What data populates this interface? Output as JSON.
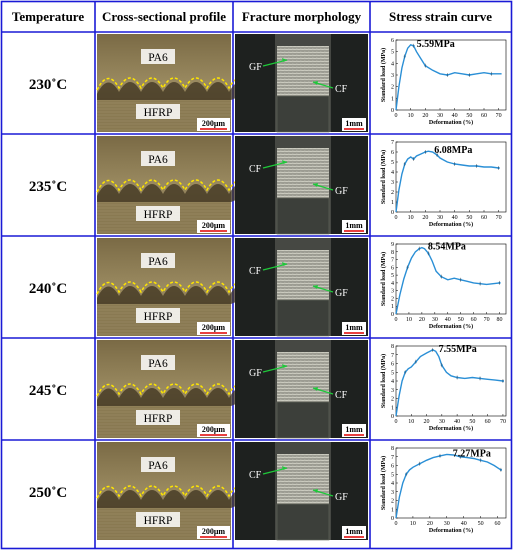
{
  "headers": [
    "Temperature",
    "Cross-sectional profile",
    "Fracture morphology",
    "Stress strain curve"
  ],
  "rows": [
    {
      "temperature": "230˚C",
      "top_label": "PA6",
      "bottom_label": "HFRP",
      "scale_bar": "200μm",
      "fracture_labels": [
        {
          "text": "GF",
          "side": "left"
        },
        {
          "text": "CF",
          "side": "right"
        }
      ],
      "fracture_scale": "1mm",
      "peak_label": "5.59MPa"
    },
    {
      "temperature": "235˚C",
      "top_label": "PA6",
      "bottom_label": "HFRP",
      "scale_bar": "200μm",
      "fracture_labels": [
        {
          "text": "CF",
          "side": "left"
        },
        {
          "text": "GF",
          "side": "right"
        }
      ],
      "fracture_scale": "1mm",
      "peak_label": "6.08MPa"
    },
    {
      "temperature": "240˚C",
      "top_label": "PA6",
      "bottom_label": "HFRP",
      "scale_bar": "200μm",
      "fracture_labels": [
        {
          "text": "CF",
          "side": "left"
        },
        {
          "text": "GF",
          "side": "right"
        }
      ],
      "fracture_scale": "1mm",
      "peak_label": "8.54MPa"
    },
    {
      "temperature": "245˚C",
      "top_label": "PA6",
      "bottom_label": "HFRP",
      "scale_bar": "200μm",
      "fracture_labels": [
        {
          "text": "GF",
          "side": "left"
        },
        {
          "text": "CF",
          "side": "right"
        }
      ],
      "fracture_scale": "1mm",
      "peak_label": "7.55MPa"
    },
    {
      "temperature": "250˚C",
      "top_label": "PA6",
      "bottom_label": "HFRP",
      "scale_bar": "200μm",
      "fracture_labels": [
        {
          "text": "CF",
          "side": "left"
        },
        {
          "text": "GF",
          "side": "right"
        }
      ],
      "fracture_scale": "1mm",
      "peak_label": "7.27MPa"
    }
  ],
  "chart_data": [
    {
      "type": "line",
      "xlabel": "Deformation (%)",
      "ylabel": "Standard load (MPa)",
      "xlim": [
        0,
        75
      ],
      "ylim": [
        0,
        6
      ],
      "xticks": [
        0,
        10,
        20,
        30,
        40,
        50,
        60,
        70
      ],
      "yticks": [
        0,
        1,
        2,
        3,
        4,
        5,
        6
      ],
      "x": [
        0,
        2,
        4,
        6,
        8,
        10,
        12,
        14,
        17,
        20,
        25,
        30,
        35,
        40,
        45,
        50,
        55,
        60,
        65,
        70,
        72
      ],
      "y": [
        0,
        2.0,
        3.6,
        4.6,
        5.3,
        5.59,
        5.5,
        5.0,
        4.4,
        3.8,
        3.4,
        3.1,
        3.0,
        3.2,
        3.1,
        3.0,
        3.1,
        3.2,
        3.1,
        3.1,
        3.1
      ],
      "peak": {
        "x": 10,
        "y": 5.59,
        "label": "5.59MPa"
      },
      "color": "#2a8fd6"
    },
    {
      "type": "line",
      "xlabel": "Deformation (%)",
      "ylabel": "Standard load (MPa)",
      "xlim": [
        0,
        75
      ],
      "ylim": [
        0,
        7
      ],
      "xticks": [
        0,
        10,
        20,
        30,
        40,
        50,
        60,
        70
      ],
      "yticks": [
        0,
        1,
        2,
        3,
        4,
        5,
        6,
        7
      ],
      "x": [
        0,
        2,
        4,
        6,
        8,
        10,
        12,
        14,
        17,
        20,
        22,
        25,
        28,
        30,
        35,
        40,
        45,
        50,
        55,
        60,
        65,
        70
      ],
      "y": [
        0,
        2.2,
        3.8,
        4.8,
        5.3,
        5.5,
        5.3,
        5.6,
        5.8,
        6.0,
        6.08,
        6.0,
        5.7,
        5.4,
        5.0,
        4.8,
        4.7,
        4.6,
        4.6,
        4.5,
        4.5,
        4.4
      ],
      "peak": {
        "x": 22,
        "y": 6.08,
        "label": "6.08MPa"
      },
      "color": "#2a8fd6"
    },
    {
      "type": "line",
      "xlabel": "Deformation (%)",
      "ylabel": "Standard load (MPa)",
      "xlim": [
        0,
        85
      ],
      "ylim": [
        0,
        9
      ],
      "xticks": [
        0,
        10,
        20,
        30,
        40,
        50,
        60,
        70,
        80
      ],
      "yticks": [
        0,
        1,
        2,
        3,
        4,
        5,
        6,
        7,
        8,
        9
      ],
      "x": [
        0,
        3,
        6,
        9,
        12,
        15,
        18,
        20,
        22,
        25,
        28,
        31,
        35,
        40,
        45,
        50,
        55,
        60,
        65,
        70,
        75,
        80
      ],
      "y": [
        0,
        2.5,
        4.5,
        6.0,
        7.2,
        8.0,
        8.4,
        8.54,
        8.4,
        7.8,
        6.8,
        5.5,
        4.8,
        4.4,
        4.6,
        4.4,
        4.2,
        4.0,
        3.9,
        3.8,
        3.9,
        4.0
      ],
      "peak": {
        "x": 20,
        "y": 8.54,
        "label": "8.54MPa"
      },
      "color": "#2a8fd6"
    },
    {
      "type": "line",
      "xlabel": "Deformation (%)",
      "ylabel": "Standard load (MPa)",
      "xlim": [
        0,
        72
      ],
      "ylim": [
        0,
        8
      ],
      "xticks": [
        0,
        10,
        20,
        30,
        40,
        50,
        60,
        70
      ],
      "yticks": [
        0,
        1,
        2,
        3,
        4,
        5,
        6,
        7,
        8
      ],
      "x": [
        0,
        2,
        4,
        6,
        8,
        10,
        13,
        16,
        20,
        24,
        26,
        28,
        30,
        33,
        36,
        40,
        45,
        50,
        55,
        60,
        65,
        70
      ],
      "y": [
        0,
        2.3,
        4.0,
        5.0,
        5.4,
        5.6,
        6.2,
        6.8,
        7.2,
        7.55,
        7.4,
        6.8,
        5.8,
        5.0,
        4.6,
        4.4,
        4.3,
        4.4,
        4.3,
        4.2,
        4.1,
        4.0
      ],
      "peak": {
        "x": 24,
        "y": 7.55,
        "label": "7.55MPa"
      },
      "color": "#2a8fd6"
    },
    {
      "type": "line",
      "xlabel": "Deformation (%)",
      "ylabel": "Standard load (MPa)",
      "xlim": [
        0,
        65
      ],
      "ylim": [
        0,
        8
      ],
      "xticks": [
        0,
        10,
        20,
        30,
        40,
        50,
        60
      ],
      "yticks": [
        0,
        1,
        2,
        3,
        4,
        5,
        6,
        7,
        8
      ],
      "x": [
        0,
        2,
        4,
        6,
        8,
        10,
        14,
        18,
        22,
        26,
        30,
        34,
        38,
        42,
        46,
        50,
        54,
        58,
        62
      ],
      "y": [
        0,
        2.4,
        4.0,
        5.0,
        5.5,
        5.8,
        6.2,
        6.6,
        6.9,
        7.1,
        7.27,
        7.2,
        7.0,
        6.9,
        6.8,
        6.6,
        6.4,
        6.0,
        5.5
      ],
      "peak": {
        "x": 30,
        "y": 7.27,
        "label": "7.27MPa"
      },
      "color": "#2a8fd6"
    }
  ],
  "colors": {
    "grid_line": "#1a1ad6",
    "curve": "#2a8fd6",
    "interface": "#ffe600",
    "arrow": "#1ec83a",
    "scale_bar": "#e00000"
  }
}
